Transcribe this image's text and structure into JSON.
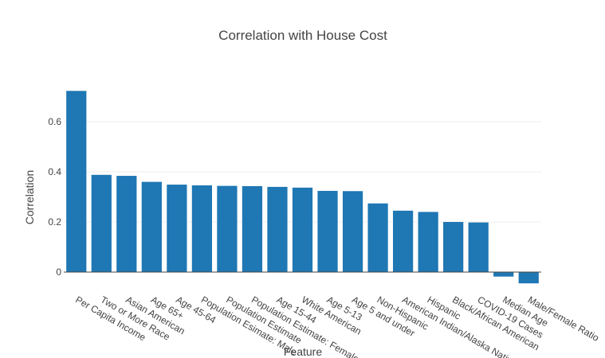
{
  "chart_data": {
    "type": "bar",
    "title": "Correlation with House Cost",
    "xlabel": "Feature",
    "ylabel": "Correlation",
    "categories": [
      "Per Capita Income",
      "Two or More Race",
      "Asian American",
      "Age 65+",
      "Age 45-64",
      "Population Esimate: Male",
      "Population Estimate",
      "Population Estimate: Female",
      "Age 15-44",
      "White American",
      "Age 5-13",
      "Age 5 and under",
      "Non-Hispanic",
      "American Indian/Alaska Native",
      "Hispanic",
      "Black/African American",
      "COVID-19 Cases",
      "Median Age",
      "Male/Female Ratio"
    ],
    "values": [
      0.723,
      0.388,
      0.384,
      0.36,
      0.349,
      0.346,
      0.344,
      0.343,
      0.34,
      0.337,
      0.324,
      0.323,
      0.274,
      0.245,
      0.24,
      0.2,
      0.198,
      -0.018,
      -0.045
    ],
    "yticks": [
      0,
      0.2,
      0.4,
      0.6
    ],
    "ylim": [
      -0.05,
      0.755
    ],
    "grid": true,
    "bar_color": "#1f77b4"
  }
}
